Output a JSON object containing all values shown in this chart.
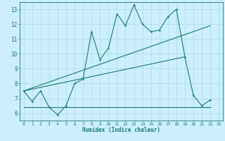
{
  "xlabel": "Humidex (Indice chaleur)",
  "ylabel": "",
  "bg_color": "#cceeff",
  "grid_color": "#aaddcc",
  "line_color": "#1a7a6e",
  "xlim": [
    -0.5,
    23.5
  ],
  "ylim": [
    5.5,
    13.5
  ],
  "xticks": [
    0,
    1,
    2,
    3,
    4,
    5,
    6,
    7,
    8,
    9,
    10,
    11,
    12,
    13,
    14,
    15,
    16,
    17,
    18,
    19,
    20,
    21,
    22,
    23
  ],
  "yticks": [
    6,
    7,
    8,
    9,
    10,
    11,
    12,
    13
  ],
  "line1_x": [
    0,
    1,
    2,
    3,
    4,
    5,
    6,
    7,
    8,
    9,
    10,
    11,
    12,
    13,
    14,
    15,
    16,
    17,
    18,
    19,
    20,
    21,
    22
  ],
  "line1_y": [
    7.5,
    6.8,
    7.5,
    6.4,
    5.9,
    6.5,
    8.0,
    8.3,
    11.5,
    9.6,
    10.4,
    12.7,
    11.9,
    13.3,
    12.0,
    11.5,
    11.6,
    12.5,
    13.0,
    9.8,
    7.2,
    6.5,
    6.9
  ],
  "line2_x": [
    0,
    22
  ],
  "line2_y": [
    7.5,
    11.9
  ],
  "line3_x": [
    0,
    22
  ],
  "line3_y": [
    6.4,
    6.4
  ],
  "line4_x": [
    0,
    19
  ],
  "line4_y": [
    7.5,
    9.8
  ]
}
